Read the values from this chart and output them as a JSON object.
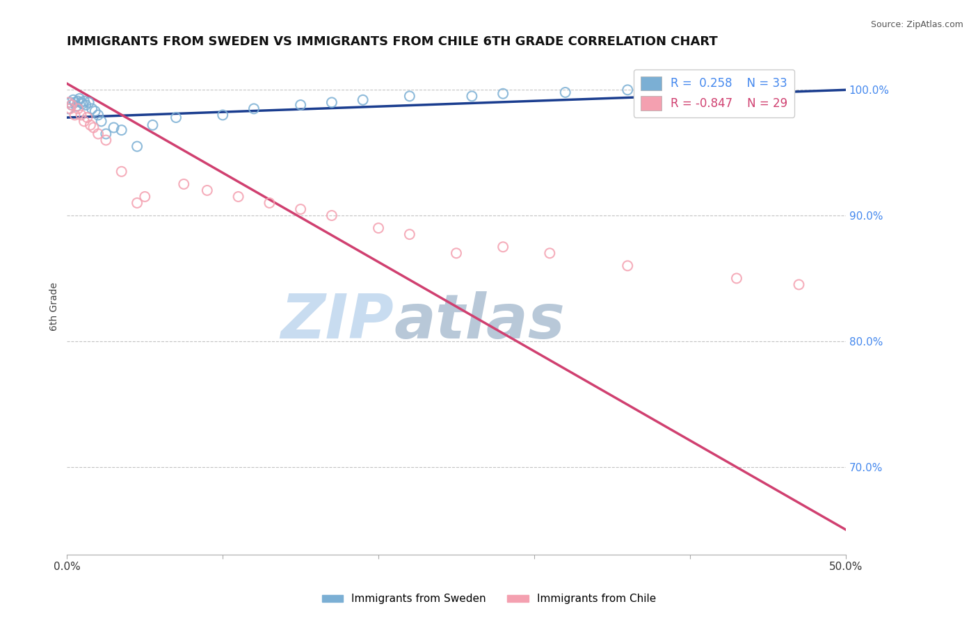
{
  "title": "IMMIGRANTS FROM SWEDEN VS IMMIGRANTS FROM CHILE 6TH GRADE CORRELATION CHART",
  "source": "Source: ZipAtlas.com",
  "ylabel_left": "6th Grade",
  "xlim": [
    0.0,
    50.0
  ],
  "ylim": [
    63.0,
    102.5
  ],
  "sweden_x": [
    0.1,
    0.2,
    0.3,
    0.4,
    0.5,
    0.6,
    0.7,
    0.8,
    0.9,
    1.0,
    1.1,
    1.2,
    1.4,
    1.6,
    1.8,
    2.0,
    2.2,
    2.5,
    3.0,
    3.5,
    4.5,
    5.5,
    7.0,
    10.0,
    12.0,
    15.0,
    17.0,
    19.0,
    22.0,
    26.0,
    28.0,
    32.0,
    36.0
  ],
  "sweden_y": [
    98.5,
    99.0,
    98.8,
    99.2,
    99.0,
    98.7,
    99.1,
    99.3,
    99.0,
    98.9,
    99.1,
    98.8,
    99.0,
    98.5,
    98.3,
    98.0,
    97.5,
    96.5,
    97.0,
    96.8,
    95.5,
    97.2,
    97.8,
    98.0,
    98.5,
    98.8,
    99.0,
    99.2,
    99.5,
    99.5,
    99.7,
    99.8,
    100.0
  ],
  "chile_x": [
    0.1,
    0.2,
    0.3,
    0.5,
    0.7,
    0.9,
    1.1,
    1.3,
    1.5,
    1.7,
    2.0,
    2.5,
    3.5,
    4.5,
    5.0,
    7.5,
    9.0,
    11.0,
    13.0,
    15.0,
    17.0,
    20.0,
    22.0,
    25.0,
    28.0,
    31.0,
    36.0,
    43.0,
    47.0
  ],
  "chile_y": [
    99.0,
    98.5,
    98.8,
    98.0,
    98.5,
    98.0,
    97.5,
    97.8,
    97.2,
    97.0,
    96.5,
    96.0,
    93.5,
    91.0,
    91.5,
    92.5,
    92.0,
    91.5,
    91.0,
    90.5,
    90.0,
    89.0,
    88.5,
    87.0,
    87.5,
    87.0,
    86.0,
    85.0,
    84.5
  ],
  "sweden_R": 0.258,
  "sweden_N": 33,
  "chile_R": -0.847,
  "chile_N": 29,
  "sweden_trend_x": [
    0.0,
    50.0
  ],
  "sweden_trend_y": [
    97.8,
    100.0
  ],
  "chile_trend_x": [
    0.0,
    50.0
  ],
  "chile_trend_y": [
    100.5,
    65.0
  ],
  "right_yticks": [
    70.0,
    80.0,
    90.0,
    100.0
  ],
  "right_ytick_labels": [
    "70.0%",
    "80.0%",
    "90.0%",
    "100.0%"
  ],
  "sweden_color": "#7BAFD4",
  "chile_color": "#F4A0B0",
  "sweden_trend_color": "#1A3D8F",
  "chile_trend_color": "#D04070",
  "grid_color": "#AAAAAA",
  "watermark_main_color": "#C8DCF0",
  "watermark_sub_color": "#B8C8D8",
  "right_axis_color": "#4488EE",
  "background_color": "#FFFFFF",
  "title_fontsize": 13
}
